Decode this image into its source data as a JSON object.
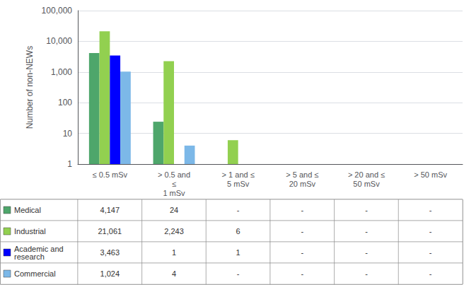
{
  "chart_data": {
    "type": "bar",
    "categories": [
      "≤ 0.5 mSv",
      "> 0.5 and\n≤\n1 mSv",
      "> 1 and ≤\n5 mSv",
      "> 5 and ≤\n20 mSv",
      "> 20 and ≤\n50 mSv",
      "> 50 mSv"
    ],
    "series": [
      {
        "name": "Medical",
        "color": "#4ea66b",
        "values": [
          4147,
          24,
          null,
          null,
          null,
          null
        ],
        "value_labels": [
          "4,147",
          "24",
          "-",
          "-",
          "-",
          "-"
        ]
      },
      {
        "name": "Industrial",
        "color": "#92d050",
        "values": [
          21061,
          2243,
          6,
          null,
          null,
          null
        ],
        "value_labels": [
          "21,061",
          "2,243",
          "6",
          "-",
          "-",
          "-"
        ]
      },
      {
        "name": "Academic and\nresearch",
        "color": "#0000ff",
        "values": [
          3463,
          1,
          1,
          null,
          null,
          null
        ],
        "value_labels": [
          "3,463",
          "1",
          "1",
          "-",
          "-",
          "-"
        ]
      },
      {
        "name": "Commercial",
        "color": "#7cb8e8",
        "values": [
          1024,
          4,
          null,
          null,
          null,
          null
        ],
        "value_labels": [
          "1,024",
          "4",
          "-",
          "-",
          "-",
          "-"
        ]
      }
    ],
    "ylabel": "Number of non-NEWs",
    "log": "y",
    "ylim": [
      1,
      100000
    ],
    "yticks": [
      1,
      10,
      100,
      {
        "value": 1000,
        "label": "1,000"
      },
      {
        "value": 10000,
        "label": "10,000"
      },
      {
        "value": 100000,
        "label": "100,000"
      }
    ],
    "grid": true
  }
}
